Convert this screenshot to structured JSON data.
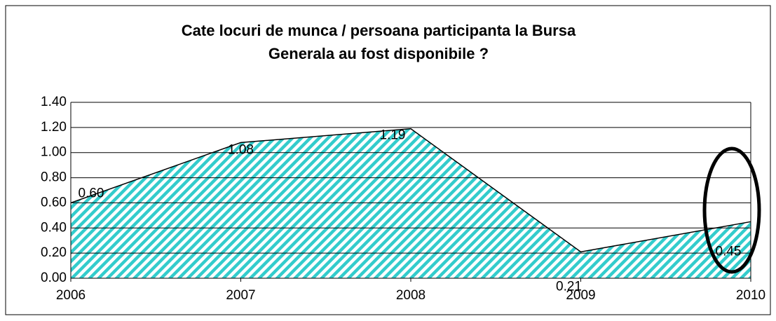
{
  "chart_data": {
    "type": "area",
    "title": [
      "Cate locuri de munca / persoana participanta la Bursa",
      "Generala au fost disponibile ?"
    ],
    "x": [
      2006,
      2007,
      2008,
      2009,
      2010
    ],
    "xlim": [
      2006,
      2010
    ],
    "xticks": [
      2006,
      2007,
      2008,
      2009,
      2010
    ],
    "values": [
      0.6,
      1.08,
      1.19,
      0.21,
      0.45
    ],
    "value_labels": [
      "0.60",
      "1.08",
      "1.19",
      "0.21",
      "0.45"
    ],
    "color": "#33cccc",
    "ylim": [
      0,
      1.4
    ],
    "yticks": [
      {
        "value": 0,
        "label": "0.00"
      },
      {
        "value": 0.2,
        "label": "0.20"
      },
      {
        "value": 0.4,
        "label": "0.40"
      },
      {
        "value": 0.6,
        "label": "0.60"
      },
      {
        "value": 0.8,
        "label": "0.80"
      },
      {
        "value": 1.0,
        "label": "1.00"
      },
      {
        "value": 1.2,
        "label": "1.20"
      },
      {
        "value": 1.4,
        "label": "1.40"
      }
    ],
    "grid": true
  }
}
